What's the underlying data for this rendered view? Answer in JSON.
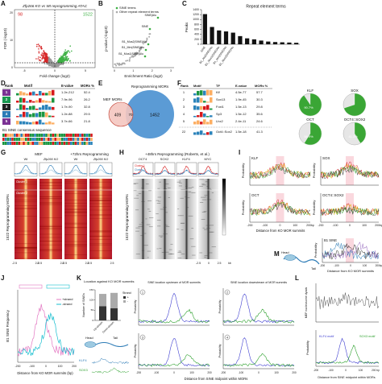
{
  "panel_a": {
    "letter": "A",
    "title": "Zfp266 KO vs Wt reprogramming ATAC",
    "x_label": "Fold change (log2)",
    "y_label": "FDR (-log10)",
    "down_count": "98",
    "up_count": "1522",
    "x_ticks": [
      "-5",
      "0",
      "5"
    ],
    "y_ticks": [
      "0",
      "10",
      "20"
    ]
  },
  "panel_b": {
    "letter": "B",
    "legend": [
      "SINE terms",
      "Other repeat element terms"
    ],
    "x_label": "Enrichment Ratio (log2)",
    "y_label": "p-value (-log10)",
    "points": [
      "SINE|Alu",
      "SINE",
      "B1_Mus2|SINE|Alu",
      "B1_Mm|SINE|Alu",
      "B1_Mus1|SINE|Alu"
    ],
    "x_ticks": [
      "0",
      "1",
      "2",
      "3"
    ]
  },
  "panel_c": {
    "letter": "C",
    "chart_data": {
      "type": "bar",
      "title": "Repeat element terms",
      "y_label": "Peaks",
      "categories": [
        "SINE",
        "B1_Alu|SINE|Alu",
        "B1_Mus1|SINE|Alu",
        "B1_Mm|SINE|Alu",
        "B1_Mus2|SINE|Alu",
        null,
        null,
        null,
        null,
        null,
        null,
        null,
        null,
        null
      ],
      "values": [
        1220,
        700,
        560,
        520,
        470,
        330,
        240,
        200,
        150,
        110,
        90,
        80,
        70,
        60
      ],
      "color": "#111111",
      "ylim": [
        0,
        1400
      ],
      "yticks": [
        0,
        200,
        400,
        600,
        800,
        1000,
        1200,
        1400
      ]
    }
  },
  "panel_d": {
    "letter": "D",
    "header": [
      "Rank",
      "Motif",
      "E-value",
      "MORs %"
    ],
    "rows": [
      [
        "1",
        "1.2e-212",
        "52.4"
      ],
      [
        "2",
        "7.9e-96",
        "26.2"
      ],
      [
        "3",
        "1.7e-90",
        "32.8"
      ],
      [
        "4",
        "1.2e-88",
        "29.5"
      ],
      [
        "5",
        "3.7e-66",
        "21.8"
      ]
    ],
    "caption": "B1 SINE consensus sequence"
  },
  "panel_e": {
    "letter": "E",
    "left_label": "MEF MORs",
    "right_label": "Reprogramming MORs",
    "left_only": "409",
    "overlap": "70",
    "right_only": "1452"
  },
  "panel_f": {
    "letter": "F",
    "header": [
      "Rank",
      "Motif",
      "TF",
      "E-value",
      "MORs %"
    ],
    "rows": [
      [
        "1",
        "Klf",
        "4.5e-77",
        "57.7"
      ],
      [
        "2",
        "Sox13",
        "1.9e-45",
        "30.3"
      ],
      [
        "3",
        "Foxl1",
        "1.5e-13",
        "29.8"
      ],
      [
        "4",
        "Sp3",
        "1.5e-12",
        "35.6"
      ],
      [
        "5",
        "Lhx2",
        "2.4e-11",
        "24.6"
      ],
      [
        "22",
        "Oct4::Sox2",
        "1.5e-18",
        "41.3"
      ]
    ],
    "pies": [
      {
        "name": "KLF",
        "value": 90.7,
        "label": "90.7%"
      },
      {
        "name": "SOX",
        "value": 70
      },
      {
        "name": "OCT",
        "value": 58.9,
        "label": "58.9%"
      },
      {
        "name": "OCT4::SOX2",
        "value": 41.3,
        "label": "41.3%"
      }
    ]
  },
  "panel_g": {
    "letter": "G",
    "groups": [
      "MEF",
      "+72hrs Reprogramming"
    ],
    "columns": [
      "Wt",
      "Zfp266 KO"
    ],
    "clusters": [
      "Cluster 1",
      "Cluster 2"
    ],
    "y_label": "1522 Reprogramming MORs",
    "x_ticks": [
      "-2.5",
      "2.5"
    ]
  },
  "panel_h": {
    "letter": "H",
    "title": "+48hrs Reprogramming (Roberts, et al.)",
    "columns": [
      "OCT4",
      "SOX2",
      "KLF4",
      "MYC"
    ],
    "clusters": [
      "Cluster 1",
      "Cluster 2"
    ],
    "y_label": "1522 Reprogramming MORs",
    "x_ticks": [
      "-2.5",
      "0",
      "2.5",
      "kb"
    ]
  },
  "panel_i": {
    "letter": "I",
    "plots": [
      "KLF",
      "SOX",
      "OCT",
      "OCT4::SOX2",
      "B1 SINE"
    ],
    "y_label": "Probability",
    "x_label": "Distance from KO MOR summits",
    "x_ticks": [
      "-200",
      "-100",
      "0",
      "100",
      "200bp"
    ]
  },
  "panel_m": {
    "letter": "M",
    "head": "Head",
    "tail": "Tail"
  },
  "panel_j": {
    "letter": "J",
    "y_label": "B1 SINE Frequency",
    "legend": [
      "+strand",
      "-strand"
    ],
    "x_label": "Distance from KO MOR summits (bp)",
    "x_ticks": [
      "-200",
      "-100",
      "0",
      "100",
      "200"
    ]
  },
  "panel_k": {
    "letter": "K",
    "bar_title": "Location against KO MOR summits",
    "bar_y_label": "Number of SINEs",
    "bar_categories": [
      "Up-stream",
      "Down-stream"
    ],
    "strand_title": "Strand",
    "bar_series": [
      {
        "name": "+",
        "color": "#333333",
        "values": [
          70,
          60
        ]
      },
      {
        "name": "-",
        "color": "#aaaaaa",
        "values": [
          60,
          75
        ]
      }
    ],
    "bar_ylim": [
      0,
      150
    ],
    "bar_yticks": [
      0,
      50,
      100,
      150
    ],
    "plot_titles": [
      "SINE location upstream of MOR summits",
      "SINE location downstream of MOR summits"
    ],
    "plot_numbers": [
      "1",
      "2",
      "3",
      "4"
    ],
    "y_label": "Probability",
    "x_label": "Distance from SINE midpoint within MORs",
    "x_ticks": [
      "-200",
      "-100",
      "0",
      "100",
      "200"
    ],
    "head": "Head",
    "tail": "Tail",
    "motifs": [
      "KLF4",
      "SOX3"
    ]
  },
  "panel_l": {
    "letter": "L",
    "y_label_top": "MEF nucleosome dyads",
    "y_label_bottom": "Probability",
    "motifs": [
      "KLF4 motif",
      "SOX3 motif"
    ],
    "x_label": "Distance from SINE midpoint within MORs",
    "x_ticks": [
      "-200",
      "-100",
      "0",
      "100",
      "200 bp"
    ]
  }
}
